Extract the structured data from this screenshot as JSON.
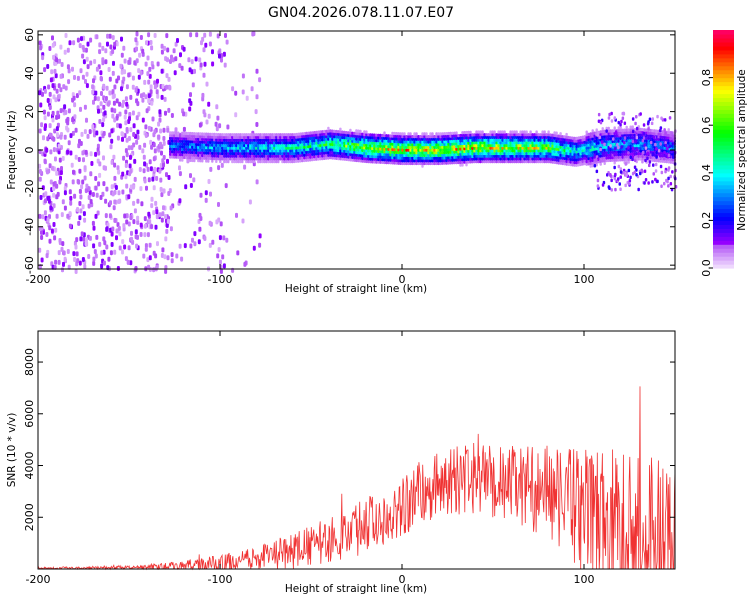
{
  "title": "GN04.2026.078.11.07.E07",
  "chart_data": [
    {
      "type": "heatmap",
      "name": "spectrogram",
      "xlabel": "Height of straight line (km)",
      "ylabel": "Frequency (Hz)",
      "xlim": [
        -200,
        150
      ],
      "ylim": [
        -62,
        62
      ],
      "xticks": [
        -200,
        -100,
        0,
        100
      ],
      "yticks": [
        60,
        40,
        20,
        0,
        -20,
        -40,
        -60
      ],
      "ridge": {
        "description": "signal band centered near 0-3 Hz",
        "x": [
          -128,
          -100,
          -60,
          -40,
          -20,
          0,
          20,
          40,
          60,
          80,
          95,
          110,
          130,
          150
        ],
        "center_hz": [
          3,
          2,
          2,
          4,
          2,
          1,
          1,
          2,
          2,
          2,
          0,
          3,
          4,
          2
        ],
        "peak_amplitude": [
          0.35,
          0.4,
          0.5,
          0.6,
          0.8,
          0.85,
          0.85,
          0.85,
          0.8,
          0.75,
          0.5,
          0.45,
          0.4,
          0.35
        ]
      },
      "noise_region": {
        "x_from": -200,
        "x_to": -78,
        "note": "scattered low-amplitude purple noise across full frequency range"
      }
    },
    {
      "type": "colorbar",
      "label": "Normalized spectral amplitude",
      "range": [
        0,
        1
      ],
      "ticks": [
        "0.0",
        "0.2",
        "0.4",
        "0.6",
        "0.8"
      ],
      "tick_values": [
        0.0,
        0.2,
        0.4,
        0.6,
        0.8
      ]
    },
    {
      "type": "line",
      "name": "snr",
      "xlabel": "Height of straight line (km)",
      "ylabel": "SNR (10 * v/v)",
      "xlim": [
        -200,
        150
      ],
      "ylim": [
        0,
        9200
      ],
      "xticks": [
        -200,
        -100,
        0,
        100
      ],
      "yticks": [
        2000,
        4000,
        6000,
        8000
      ],
      "color": "#f03232",
      "envelope": {
        "x": [
          -200,
          -150,
          -125,
          -100,
          -80,
          -60,
          -40,
          -20,
          0,
          20,
          40,
          60,
          80,
          100,
          120,
          140,
          150
        ],
        "base": [
          40,
          60,
          100,
          200,
          350,
          700,
          1100,
          1700,
          2500,
          3300,
          3500,
          3300,
          3000,
          2200,
          1500,
          1300,
          1200
        ],
        "spread": [
          40,
          60,
          180,
          350,
          500,
          700,
          900,
          1100,
          1300,
          1300,
          1400,
          1500,
          1800,
          2500,
          3200,
          3300,
          3200
        ]
      }
    }
  ]
}
